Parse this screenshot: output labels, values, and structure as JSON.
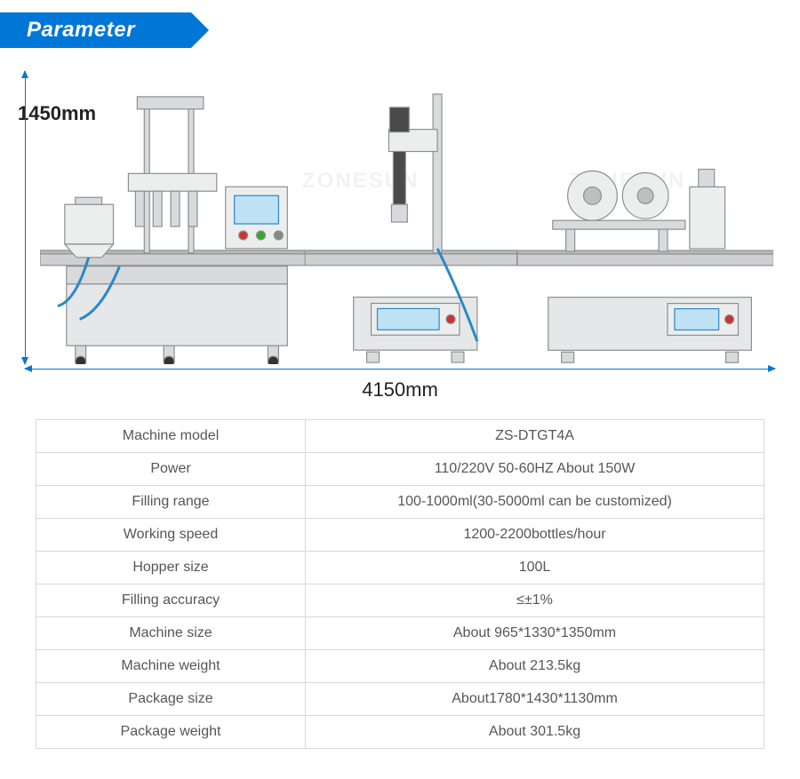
{
  "header": {
    "title": "Parameter"
  },
  "diagram": {
    "height_label": "1450mm",
    "width_label": "4150mm",
    "dim_color": "#0277d4",
    "watermark_text": "ZONESUN",
    "machine_fill": "#d9dadb",
    "machine_stroke": "#8e8f90",
    "screen_color": "#bfe2f4",
    "accent_blue": "#2a88c9"
  },
  "table": {
    "rows": [
      {
        "label": "Machine model",
        "value": "ZS-DTGT4A"
      },
      {
        "label": "Power",
        "value": "110/220V 50-60HZ About 150W"
      },
      {
        "label": "Filling range",
        "value": "100-1000ml(30-5000ml can be customized)"
      },
      {
        "label": "Working speed",
        "value": "1200-2200bottles/hour"
      },
      {
        "label": "Hopper size",
        "value": "100L"
      },
      {
        "label": "Filling accuracy",
        "value": "≤±1%"
      },
      {
        "label": "Machine size",
        "value": "About 965*1330*1350mm"
      },
      {
        "label": "Machine weight",
        "value": "About 213.5kg"
      },
      {
        "label": "Package size",
        "value": "About1780*1430*1130mm"
      },
      {
        "label": "Package weight",
        "value": "About 301.5kg"
      }
    ],
    "border_color": "#d8d8d8",
    "text_color": "#565656",
    "fontsize": 16
  },
  "colors": {
    "header_bg": "#0076d6",
    "header_text": "#ffffff",
    "background": "#ffffff"
  }
}
